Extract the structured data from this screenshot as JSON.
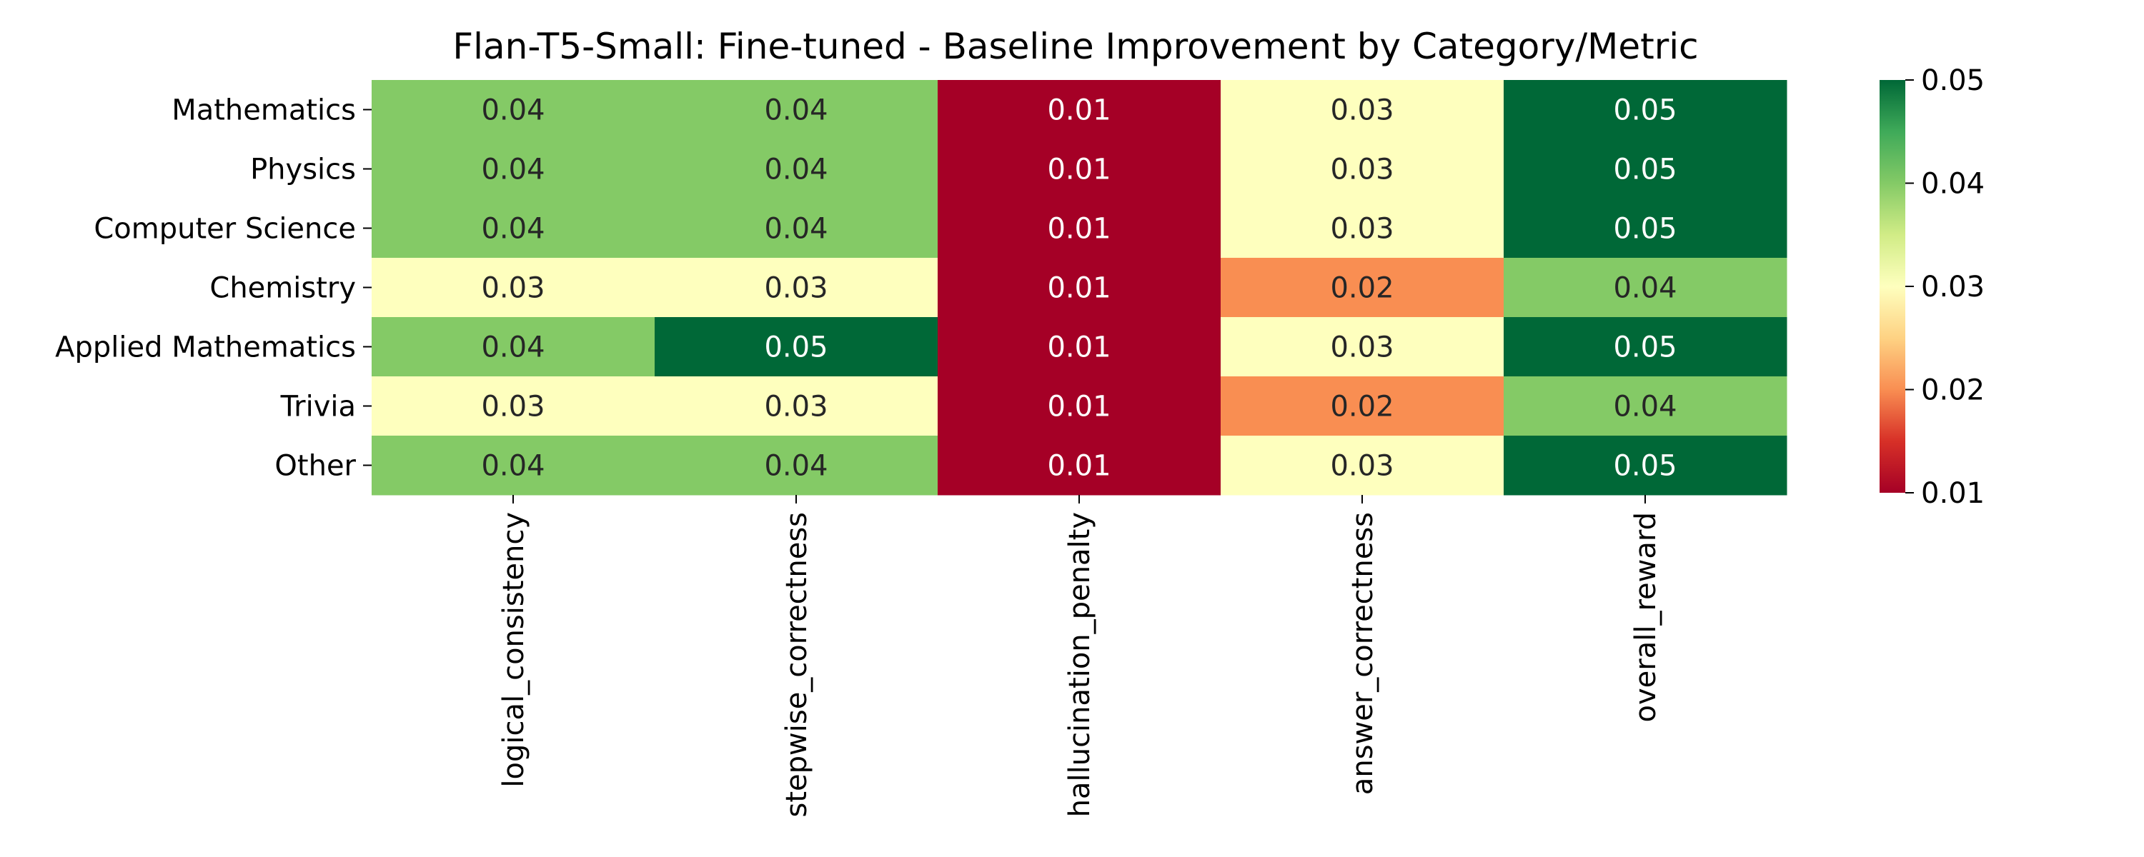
{
  "chart_data": {
    "type": "heatmap",
    "title": "Flan-T5-Small: Fine-tuned - Baseline Improvement by Category/Metric",
    "rows": [
      "Mathematics",
      "Physics",
      "Computer Science",
      "Chemistry",
      "Applied Mathematics",
      "Trivia",
      "Other"
    ],
    "columns": [
      "logical_consistency",
      "stepwise_correctness",
      "hallucination_penalty",
      "answer_correctness",
      "overall_reward"
    ],
    "values": [
      [
        0.04,
        0.04,
        0.01,
        0.03,
        0.05
      ],
      [
        0.04,
        0.04,
        0.01,
        0.03,
        0.05
      ],
      [
        0.04,
        0.04,
        0.01,
        0.03,
        0.05
      ],
      [
        0.03,
        0.03,
        0.01,
        0.02,
        0.04
      ],
      [
        0.04,
        0.05,
        0.01,
        0.03,
        0.05
      ],
      [
        0.03,
        0.03,
        0.01,
        0.02,
        0.04
      ],
      [
        0.04,
        0.04,
        0.01,
        0.03,
        0.05
      ]
    ],
    "cell_labels": [
      [
        "0.04",
        "0.04",
        "0.01",
        "0.03",
        "0.05"
      ],
      [
        "0.04",
        "0.04",
        "0.01",
        "0.03",
        "0.05"
      ],
      [
        "0.04",
        "0.04",
        "0.01",
        "0.03",
        "0.05"
      ],
      [
        "0.03",
        "0.03",
        "0.01",
        "0.02",
        "0.04"
      ],
      [
        "0.04",
        "0.05",
        "0.01",
        "0.03",
        "0.05"
      ],
      [
        "0.03",
        "0.03",
        "0.01",
        "0.02",
        "0.04"
      ],
      [
        "0.04",
        "0.04",
        "0.01",
        "0.03",
        "0.05"
      ]
    ],
    "colormap": "RdYlGn",
    "vmin": 0.01,
    "vmax": 0.05,
    "colorbar_ticks": [
      "0.01",
      "0.02",
      "0.03",
      "0.04",
      "0.05"
    ],
    "colors": {
      "0.01": "#a50026",
      "0.02": "#f98e52",
      "0.03": "#feffbe",
      "0.04": "#84ca66",
      "0.05": "#006837"
    },
    "text_colors": {
      "dark": "#262626",
      "light": "#ffffff"
    }
  }
}
